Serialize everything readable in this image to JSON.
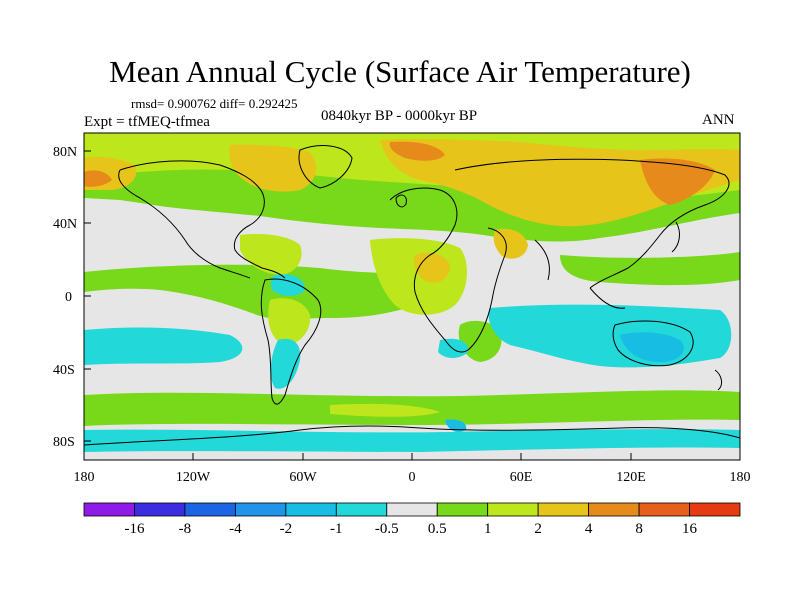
{
  "title": "Mean Annual Cycle (Surface Air Temperature)",
  "stats": "rmsd= 0.900762 diff= 0.292425",
  "experiment": "Expt = tfMEQ-tfmea",
  "period": "0840kyr BP - 0000kyr BP",
  "season": "ANN",
  "lat_labels": [
    "80N",
    "40N",
    "0",
    "40S",
    "80S"
  ],
  "lon_labels": [
    "180",
    "120W",
    "60W",
    "0",
    "60E",
    "120E",
    "180"
  ],
  "colorbar": {
    "labels": [
      "-16",
      "-8",
      "-4",
      "-2",
      "-1",
      "-0.5",
      "0.5",
      "1",
      "2",
      "4",
      "8",
      "16"
    ],
    "colors": [
      "#8f1ce6",
      "#3c2ee0",
      "#1c64e6",
      "#1f94e8",
      "#18bde4",
      "#22d8d8",
      "#e6e6e6",
      "#78d81a",
      "#bde61c",
      "#e6c41a",
      "#e68a1c",
      "#e6601c",
      "#e63a12"
    ]
  },
  "chart_data": {
    "type": "filled-contour-map",
    "variable": "Surface Air Temperature difference",
    "levels": [
      -16,
      -8,
      -4,
      -2,
      -1,
      -0.5,
      0.5,
      1,
      2,
      4,
      8,
      16
    ],
    "lon_range": [
      -180,
      180
    ],
    "lat_range": [
      -90,
      90
    ]
  }
}
